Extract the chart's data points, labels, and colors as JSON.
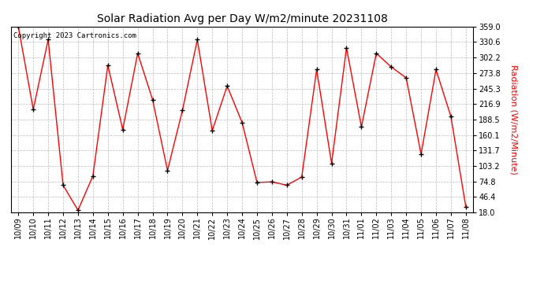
{
  "title": "Solar Radiation Avg per Day W/m2/minute 20231108",
  "ylabel": "Radiation (W/m2/Minute)",
  "copyright": "Copyright 2023 Cartronics.com",
  "background_color": "#ffffff",
  "plot_bg_color": "#ffffff",
  "line_color": "red",
  "marker_color": "black",
  "ylabel_color": "red",
  "copyright_color": "black",
  "ylim": [
    18.0,
    359.0
  ],
  "yticks": [
    18.0,
    46.4,
    74.8,
    103.2,
    131.7,
    160.1,
    188.5,
    216.9,
    245.3,
    273.8,
    302.2,
    330.6,
    359.0
  ],
  "dates": [
    "10/09",
    "10/10",
    "10/11",
    "10/12",
    "10/13",
    "10/14",
    "10/15",
    "10/16",
    "10/17",
    "10/18",
    "10/19",
    "10/20",
    "10/21",
    "10/22",
    "10/23",
    "10/24",
    "10/25",
    "10/26",
    "10/27",
    "10/28",
    "10/29",
    "10/30",
    "10/31",
    "11/01",
    "11/02",
    "11/03",
    "11/04",
    "11/05",
    "11/06",
    "11/07",
    "11/08"
  ],
  "values": [
    359.0,
    207.0,
    335.0,
    68.0,
    22.0,
    85.0,
    288.0,
    170.0,
    310.0,
    225.0,
    95.0,
    205.0,
    335.0,
    168.0,
    250.0,
    183.0,
    73.0,
    74.0,
    68.0,
    83.0,
    280.0,
    108.0,
    320.0,
    175.0,
    310.0,
    285.0,
    265.0,
    125.0,
    280.0,
    194.0,
    28.0
  ],
  "title_fontsize": 10,
  "tick_fontsize": 7,
  "ylabel_fontsize": 8,
  "copyright_fontsize": 6.5,
  "figwidth": 6.9,
  "figheight": 3.75,
  "dpi": 100
}
